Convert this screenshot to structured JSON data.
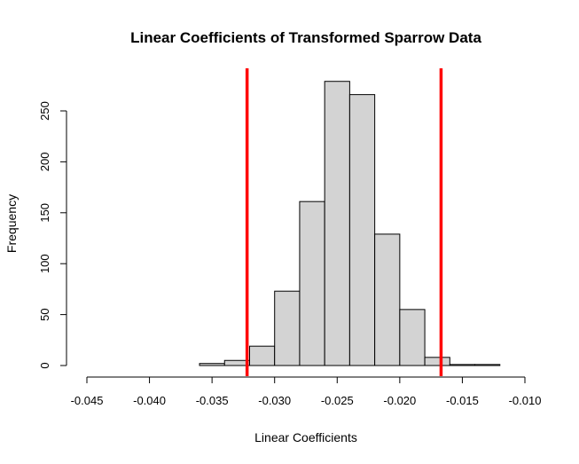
{
  "chart_data": {
    "type": "bar",
    "title": "Linear Coefficients of Transformed Sparrow Data",
    "xlabel": "Linear Coefficients",
    "ylabel": "Frequency",
    "xlim": [
      -0.045,
      -0.01
    ],
    "ylim": [
      0,
      290
    ],
    "x_ticks": [
      -0.045,
      -0.04,
      -0.035,
      -0.03,
      -0.025,
      -0.02,
      -0.015,
      -0.01
    ],
    "x_tick_labels": [
      "-0.045",
      "-0.040",
      "-0.035",
      "-0.030",
      "-0.025",
      "-0.020",
      "-0.015",
      "-0.010"
    ],
    "y_ticks": [
      0,
      50,
      100,
      150,
      200,
      250
    ],
    "y_tick_labels": [
      "0",
      "50",
      "100",
      "150",
      "200",
      "250"
    ],
    "bin_edges": [
      -0.036,
      -0.034,
      -0.032,
      -0.03,
      -0.028,
      -0.026,
      -0.024,
      -0.022,
      -0.02,
      -0.018,
      -0.016,
      -0.014,
      -0.012
    ],
    "values": [
      2,
      5,
      19,
      73,
      161,
      279,
      266,
      129,
      55,
      8,
      1,
      1
    ],
    "reference_lines": [
      {
        "x": -0.0322,
        "color": "#ff0000"
      },
      {
        "x": -0.0167,
        "color": "#ff0000"
      }
    ],
    "bar_color": "#d3d3d3",
    "grid": false,
    "legend": "none"
  }
}
